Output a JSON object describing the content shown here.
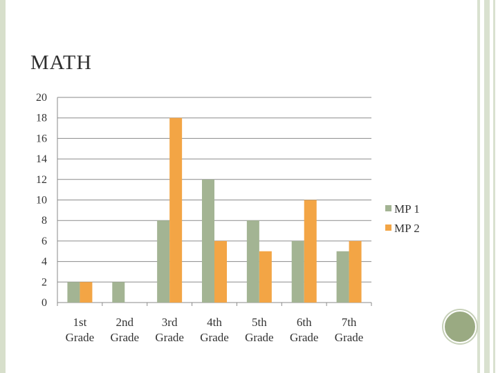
{
  "slide": {
    "title": "MATH"
  },
  "colors": {
    "mp1": "#a3b493",
    "mp2": "#f3a545",
    "grid": "#8a8a8a",
    "axis": "#8a8a8a"
  },
  "chart_data": {
    "type": "bar",
    "title": "MATH",
    "categories": [
      [
        "1st",
        "Grade"
      ],
      [
        "2nd",
        "Grade"
      ],
      [
        "3rd",
        "Grade"
      ],
      [
        "4th",
        "Grade"
      ],
      [
        "5th",
        "Grade"
      ],
      [
        "6th",
        "Grade"
      ],
      [
        "7th",
        "Grade"
      ]
    ],
    "series": [
      {
        "name": "MP 1",
        "values": [
          2,
          2,
          8,
          12,
          8,
          6,
          5
        ]
      },
      {
        "name": "MP 2",
        "values": [
          2,
          null,
          18,
          6,
          5,
          10,
          6
        ]
      }
    ],
    "ylim": [
      0,
      20
    ],
    "yticks": [
      0,
      2,
      4,
      6,
      8,
      10,
      12,
      14,
      16,
      18,
      20
    ],
    "grid": true,
    "legend": "right"
  }
}
